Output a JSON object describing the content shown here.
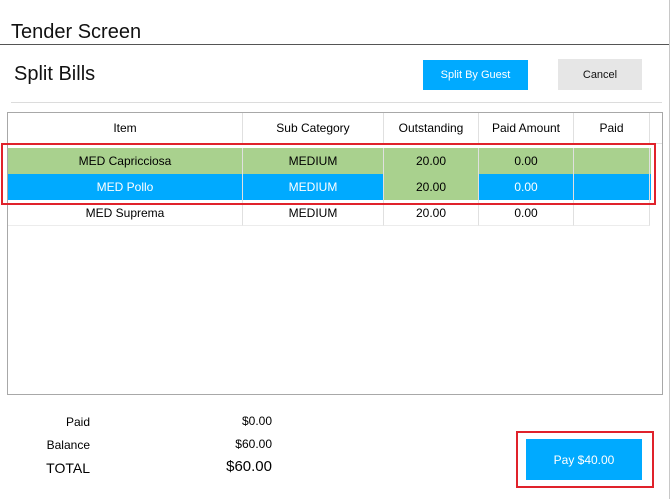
{
  "window": {
    "title": "Tender Screen"
  },
  "section": {
    "title": "Split Bills"
  },
  "actions": {
    "split_by_guest": "Split By Guest",
    "cancel": "Cancel",
    "pay": "Pay $40.00"
  },
  "table": {
    "headers": [
      "Item",
      "Sub Category",
      "Outstanding",
      "Paid Amount",
      "Paid"
    ],
    "rows": [
      {
        "item": "MED Capricciosa",
        "sub_category": "MEDIUM",
        "outstanding": "20.00",
        "paid_amount": "0.00",
        "paid": "",
        "state": "selected-green"
      },
      {
        "item": "MED Pollo",
        "sub_category": "MEDIUM",
        "outstanding": "20.00",
        "paid_amount": "0.00",
        "paid": "",
        "state": "selected-blue"
      },
      {
        "item": "MED Suprema",
        "sub_category": "MEDIUM",
        "outstanding": "20.00",
        "paid_amount": "0.00",
        "paid": "",
        "state": "normal"
      }
    ]
  },
  "summary": {
    "paid_label": "Paid",
    "paid_value": "$0.00",
    "balance_label": "Balance",
    "balance_value": "$60.00",
    "total_label": "TOTAL",
    "total_value": "$60.00"
  },
  "colors": {
    "accent_blue": "#00aaff",
    "selected_green": "#a9d18e",
    "highlight_red": "#e0222b"
  }
}
